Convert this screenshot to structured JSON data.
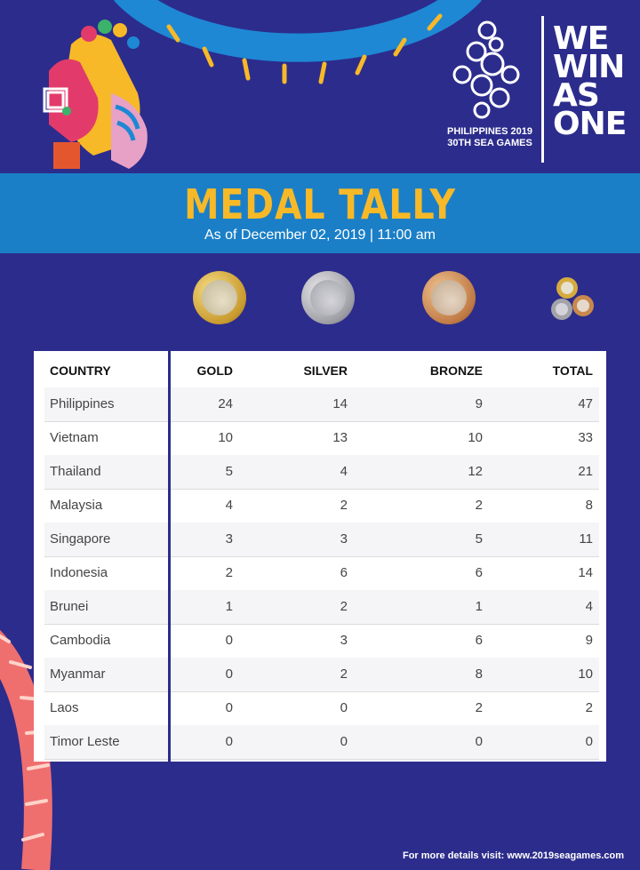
{
  "header": {
    "logo_line1": "PHILIPPINES 2019",
    "logo_line2": "30TH SEA GAMES",
    "slogan": [
      "WE",
      "WIN",
      "AS",
      "ONE"
    ]
  },
  "title": "MEDAL TALLY",
  "subtitle": "As of December 02, 2019 | 11:00 am",
  "medal_icons": [
    "gold-medal-icon",
    "silver-medal-icon",
    "bronze-medal-icon",
    "all-medals-icon"
  ],
  "columns": {
    "country": "COUNTRY",
    "gold": "GOLD",
    "silver": "SILVER",
    "bronze": "BRONZE",
    "total": "TOTAL"
  },
  "rows": [
    {
      "country": "Philippines",
      "gold": "24",
      "silver": "14",
      "bronze": "9",
      "total": "47"
    },
    {
      "country": "Vietnam",
      "gold": "10",
      "silver": "13",
      "bronze": "10",
      "total": "33"
    },
    {
      "country": "Thailand",
      "gold": "5",
      "silver": "4",
      "bronze": "12",
      "total": "21"
    },
    {
      "country": "Malaysia",
      "gold": "4",
      "silver": "2",
      "bronze": "2",
      "total": "8"
    },
    {
      "country": "Singapore",
      "gold": "3",
      "silver": "3",
      "bronze": "5",
      "total": "11"
    },
    {
      "country": "Indonesia",
      "gold": "2",
      "silver": "6",
      "bronze": "6",
      "total": "14"
    },
    {
      "country": "Brunei",
      "gold": "1",
      "silver": "2",
      "bronze": "1",
      "total": "4"
    },
    {
      "country": "Cambodia",
      "gold": "0",
      "silver": "3",
      "bronze": "6",
      "total": "9"
    },
    {
      "country": "Myanmar",
      "gold": "0",
      "silver": "2",
      "bronze": "8",
      "total": "10"
    },
    {
      "country": "Laos",
      "gold": "0",
      "silver": "0",
      "bronze": "2",
      "total": "2"
    },
    {
      "country": "Timor Leste",
      "gold": "0",
      "silver": "0",
      "bronze": "0",
      "total": "0"
    }
  ],
  "footer": "For more details visit: www.2019seagames.com",
  "colors": {
    "background": "#2c2c8c",
    "band": "#1b7fc7",
    "title": "#f7b928",
    "ring": "#1e88d4"
  }
}
